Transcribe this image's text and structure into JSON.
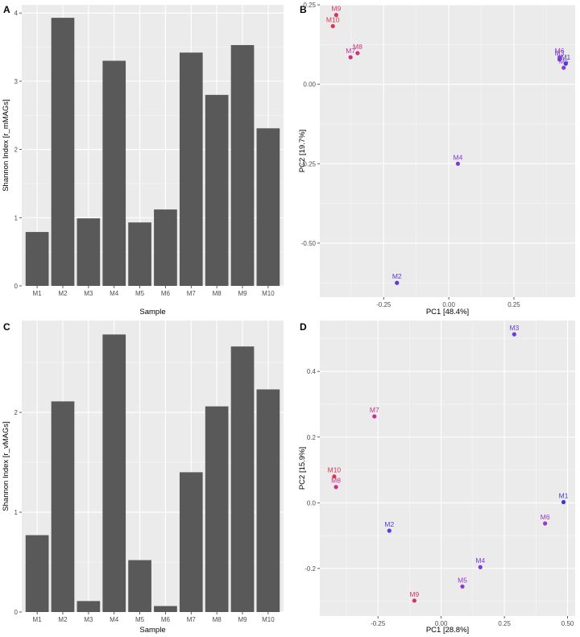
{
  "colors": {
    "panel_bg": "#ebebeb",
    "grid_major": "#ffffff",
    "bar_fill": "#595959"
  },
  "chart_data": [
    {
      "panel": "A",
      "type": "bar",
      "categories": [
        "M1",
        "M2",
        "M3",
        "M4",
        "M5",
        "M6",
        "M7",
        "M8",
        "M9",
        "M10"
      ],
      "values": [
        0.79,
        3.93,
        0.99,
        3.3,
        0.93,
        1.12,
        3.42,
        2.8,
        3.53,
        2.31
      ],
      "xlabel": "Sample",
      "ylabel": "Shannon Index [r_mMAGs]",
      "ylim": [
        0,
        4.12
      ],
      "yticks": [
        0,
        1,
        2,
        3,
        4
      ],
      "ytick_labels": [
        "0",
        "1",
        "2",
        "3",
        "4"
      ]
    },
    {
      "panel": "B",
      "type": "scatter",
      "xlabel": "PC1 [48.4%]",
      "ylabel": "PC2 [19.7%]",
      "xlim": [
        -0.495,
        0.485
      ],
      "ylim": [
        -0.67,
        0.25
      ],
      "xticks": [
        -0.25,
        0,
        0.25
      ],
      "xtick_labels": [
        "-0.25",
        "0.00",
        "0.25"
      ],
      "yticks": [
        -0.5,
        -0.25,
        0,
        0.25
      ],
      "ytick_labels": [
        "-0.50",
        "-0.25",
        "0.00",
        "0.25"
      ],
      "points": [
        {
          "label": "M9",
          "x": -0.432,
          "y": 0.218,
          "color": "#d6336c"
        },
        {
          "label": "M10",
          "x": -0.445,
          "y": 0.183,
          "color": "#e03153"
        },
        {
          "label": "M8",
          "x": -0.35,
          "y": 0.098,
          "color": "#c93384"
        },
        {
          "label": "M7",
          "x": -0.377,
          "y": 0.085,
          "color": "#c6338e"
        },
        {
          "label": "M6",
          "x": 0.425,
          "y": 0.085,
          "color": "#9b3ac4"
        },
        {
          "label": "M3",
          "x": 0.425,
          "y": 0.078,
          "color": "#6a3de0"
        },
        {
          "label": "M1",
          "x": 0.449,
          "y": 0.065,
          "color": "#3f39d4"
        },
        {
          "label": "M5",
          "x": 0.441,
          "y": 0.052,
          "color": "#8e38cf"
        },
        {
          "label": "M4",
          "x": 0.035,
          "y": -0.25,
          "color": "#7a3bd8"
        },
        {
          "label": "M2",
          "x": -0.199,
          "y": -0.625,
          "color": "#5b3ad6"
        }
      ]
    },
    {
      "panel": "C",
      "type": "bar",
      "categories": [
        "M1",
        "M2",
        "M3",
        "M4",
        "M5",
        "M6",
        "M7",
        "M8",
        "M9",
        "M10"
      ],
      "values": [
        0.77,
        2.11,
        0.11,
        2.78,
        0.52,
        0.06,
        1.4,
        2.06,
        2.66,
        2.23
      ],
      "xlabel": "Sample",
      "ylabel": "Shannon Index [r_vMAGs]",
      "ylim": [
        0,
        2.92
      ],
      "yticks": [
        0,
        1,
        2
      ],
      "ytick_labels": [
        "0",
        "1",
        "2"
      ]
    },
    {
      "panel": "D",
      "type": "scatter",
      "xlabel": "PC1 [28.8%]",
      "ylabel": "PC2 [15.9%]",
      "xlim": [
        -0.48,
        0.53
      ],
      "ylim": [
        -0.345,
        0.555
      ],
      "xticks": [
        -0.25,
        0,
        0.25,
        0.5
      ],
      "xtick_labels": [
        "-0.25",
        "0.00",
        "0.25",
        "0.50"
      ],
      "yticks": [
        -0.2,
        0,
        0.2,
        0.4
      ],
      "ytick_labels": [
        "-0.2",
        "0.0",
        "0.2",
        "0.4"
      ],
      "points": [
        {
          "label": "M3",
          "x": 0.289,
          "y": 0.513,
          "color": "#6a3de0"
        },
        {
          "label": "M7",
          "x": -0.264,
          "y": 0.263,
          "color": "#c6338e"
        },
        {
          "label": "M10",
          "x": -0.423,
          "y": 0.08,
          "color": "#e03153"
        },
        {
          "label": "M8",
          "x": -0.416,
          "y": 0.048,
          "color": "#c93384"
        },
        {
          "label": "M1",
          "x": 0.484,
          "y": 0.002,
          "color": "#3f39d4"
        },
        {
          "label": "M6",
          "x": 0.411,
          "y": -0.063,
          "color": "#9b3ac4"
        },
        {
          "label": "M2",
          "x": -0.205,
          "y": -0.085,
          "color": "#5b3ad6"
        },
        {
          "label": "M4",
          "x": 0.155,
          "y": -0.196,
          "color": "#7a3bd8"
        },
        {
          "label": "M5",
          "x": 0.084,
          "y": -0.255,
          "color": "#8e38cf"
        },
        {
          "label": "M9",
          "x": -0.106,
          "y": -0.298,
          "color": "#d6336c"
        }
      ]
    }
  ]
}
